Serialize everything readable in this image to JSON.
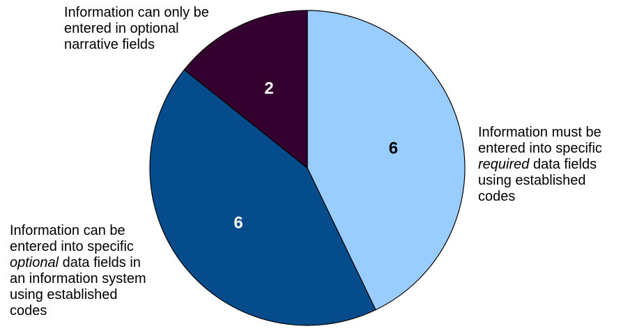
{
  "chart_data": {
    "type": "pie",
    "title": "",
    "start": "12 o'clock",
    "direction": "clockwise",
    "slices": [
      {
        "category": "Information must be entered into specific required data fields using established codes",
        "value": 6,
        "color": "#99ccff",
        "label_color": "#000000"
      },
      {
        "category": "Information can be entered into specific optional data fields in an information system using established codes",
        "value": 6,
        "color": "#044c8c",
        "label_color": "#ffffff"
      },
      {
        "category": "Information can only be entered in optional narrative fields",
        "value": 2,
        "color": "#33002f",
        "label_color": "#ffffff"
      }
    ]
  },
  "labels": {
    "required": {
      "line1": "Information must be",
      "line2": "entered into specific",
      "line3_em": "required",
      "line3_rest": " data fields",
      "line4": "using established",
      "line5": "codes"
    },
    "optional": {
      "line1": "Information can be",
      "line2": "entered into specific",
      "line3_em": "optional",
      "line3_rest": " data fields in",
      "line4": "an information system",
      "line5": "using established",
      "line6": "codes"
    },
    "narrative": {
      "line1": "Information can only be",
      "line2": "entered in optional",
      "line3": "narrative fields"
    }
  }
}
